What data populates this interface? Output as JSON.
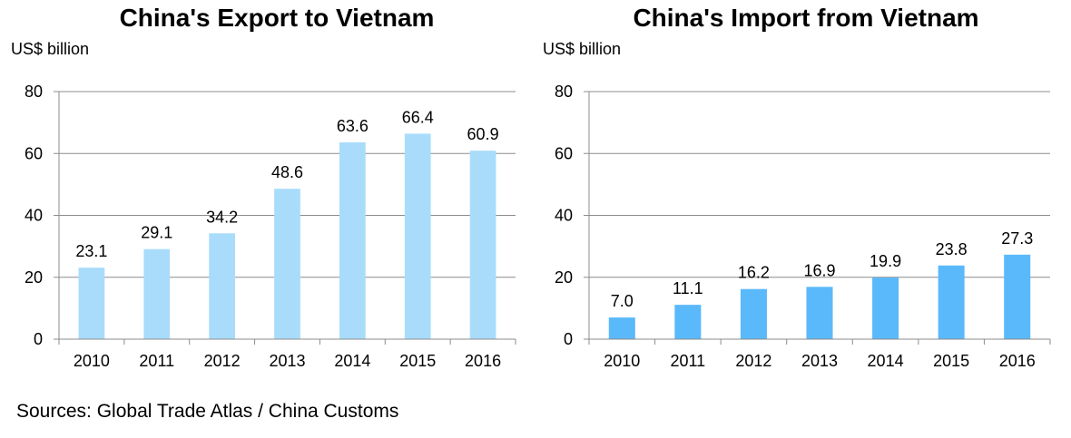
{
  "chart_data": [
    {
      "type": "bar",
      "title": "China's Export to Vietnam",
      "ylabel": "US$ billion",
      "xlabel": "",
      "categories": [
        "2010",
        "2011",
        "2012",
        "2013",
        "2014",
        "2015",
        "2016"
      ],
      "values": [
        23.1,
        29.1,
        34.2,
        48.6,
        63.6,
        66.4,
        60.9
      ],
      "value_labels": [
        "23.1",
        "29.1",
        "34.2",
        "48.6",
        "63.6",
        "66.4",
        "60.9"
      ],
      "ylim": [
        0,
        80
      ],
      "yticks": [
        "0",
        "20",
        "40",
        "60",
        "80"
      ],
      "grid": true,
      "bar_color": "#a9dcfb"
    },
    {
      "type": "bar",
      "title": "China's Import from Vietnam",
      "ylabel": "US$ billion",
      "xlabel": "",
      "categories": [
        "2010",
        "2011",
        "2012",
        "2013",
        "2014",
        "2015",
        "2016"
      ],
      "values": [
        7.0,
        11.1,
        16.2,
        16.9,
        19.9,
        23.8,
        27.3
      ],
      "value_labels": [
        "7.0",
        "11.1",
        "16.2",
        "16.9",
        "19.9",
        "23.8",
        "27.3"
      ],
      "ylim": [
        0,
        80
      ],
      "yticks": [
        "0",
        "20",
        "40",
        "60",
        "80"
      ],
      "grid": true,
      "bar_color": "#5ab9fb"
    }
  ],
  "source": "Sources: Global Trade Atlas / China Customs"
}
